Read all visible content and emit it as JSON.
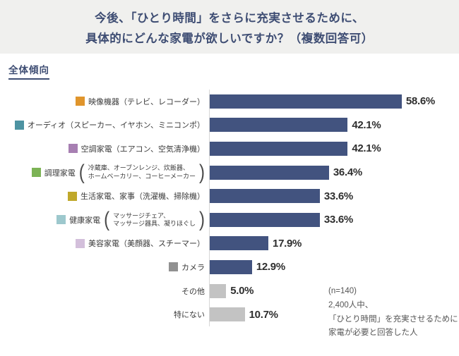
{
  "title": {
    "line1": "今後、「ひとり時間」をさらに充実させるために、",
    "line2": "具体的にどんな家電が欲しいですか？（複数回答可）"
  },
  "section_label": "全体傾向",
  "annotation": {
    "line1": "(n=140)",
    "line2": "2,400人中、",
    "line3": "「ひとり時間」を充実させるために",
    "line4": "家電が必要と回答した人"
  },
  "colors": {
    "title_navy": "#3e4d73",
    "bar_navy": "#42537f",
    "bar_gray": "#c3c3c3",
    "axis_line": "#d8d8d8",
    "title_band_bg": "#f0f0ee"
  },
  "chart_data": {
    "type": "bar",
    "orientation": "horizontal",
    "unit": "%",
    "xlim": [
      0,
      63
    ],
    "title": "今後、「ひとり時間」をさらに充実させるために、具体的にどんな家電が欲しいですか？（複数回答可）",
    "legend_position": "none",
    "grid": false,
    "rows": [
      {
        "label": "映像機器（テレビ、レコーダー）",
        "sub": null,
        "swatch": "#e0952c",
        "value": 58.6,
        "value_label": "58.6%",
        "bar_color": "#42537f"
      },
      {
        "label": "オーディオ（スピーカー、イヤホン、ミニコンポ）",
        "sub": null,
        "swatch": "#4d93a2",
        "value": 42.1,
        "value_label": "42.1%",
        "bar_color": "#42537f"
      },
      {
        "label": "空調家電（エアコン、空気清浄機）",
        "sub": null,
        "swatch": "#a77fb2",
        "value": 42.1,
        "value_label": "42.1%",
        "bar_color": "#42537f"
      },
      {
        "label": "調理家電",
        "sub": [
          "冷蔵庫、オーブンレンジ、炊飯器、",
          "ホームベーカリー、コーヒーメーカー"
        ],
        "swatch": "#7cb355",
        "value": 36.4,
        "value_label": "36.4%",
        "bar_color": "#42537f"
      },
      {
        "label": "生活家電、家事（洗濯機、掃除機）",
        "sub": null,
        "swatch": "#c0a82b",
        "value": 33.6,
        "value_label": "33.6%",
        "bar_color": "#42537f"
      },
      {
        "label": "健康家電",
        "sub": [
          "マッサージチェア、",
          "マッサージ器具、凝りほぐし"
        ],
        "swatch": "#9dc8cd",
        "value": 33.6,
        "value_label": "33.6%",
        "bar_color": "#42537f"
      },
      {
        "label": "美容家電（美顔器、スチーマー）",
        "sub": null,
        "swatch": "#d3bfdb",
        "value": 17.9,
        "value_label": "17.9%",
        "bar_color": "#42537f"
      },
      {
        "label": "カメラ",
        "sub": null,
        "swatch": "#919191",
        "value": 12.9,
        "value_label": "12.9%",
        "bar_color": "#42537f"
      },
      {
        "label": "その他",
        "sub": null,
        "swatch": null,
        "value": 5.0,
        "value_label": "5.0%",
        "bar_color": "#c3c3c3"
      },
      {
        "label": "特にない",
        "sub": null,
        "swatch": null,
        "value": 10.7,
        "value_label": "10.7%",
        "bar_color": "#c3c3c3"
      }
    ]
  }
}
